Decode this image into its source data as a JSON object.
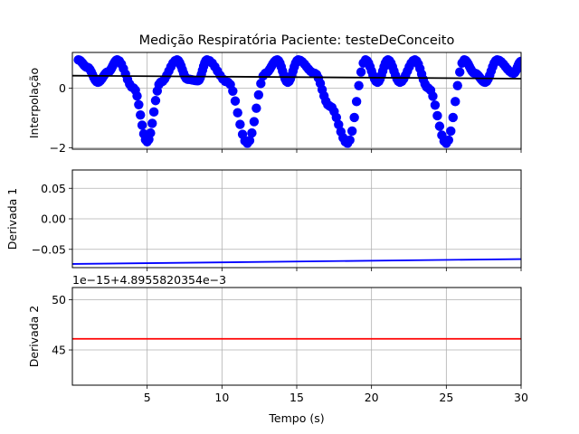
{
  "figure": {
    "title": "Medição Respiratória Paciente: testeDeConceito",
    "xlabel": "Tempo (s)",
    "x_ticks": [
      "5",
      "10",
      "15",
      "20",
      "25",
      "30"
    ]
  },
  "colors": {
    "interp_markers": "#0000ff",
    "interp_line": "#000000",
    "deriv1_line": "#0000ff",
    "deriv2_line": "#ff0000",
    "grid": "#b0b0b0"
  },
  "chart_data": [
    {
      "type": "line",
      "panel": "top",
      "ylabel": "Interpolação",
      "xlim": [
        0,
        30
      ],
      "ylim": [
        -2.05,
        1.2
      ],
      "y_tick_labels": [
        "0",
        "−2"
      ],
      "y_tick_values": [
        0,
        -2
      ],
      "grid": true,
      "series": [
        {
          "style": "markers",
          "color": "#0000ff",
          "x": [
            0.4,
            1.0,
            1.7,
            2.4,
            3.0,
            4.1,
            5.0,
            5.9,
            7.0,
            7.7,
            8.4,
            9.0,
            10.4,
            11.7,
            12.9,
            13.7,
            14.4,
            15.1,
            16.2,
            17.2,
            18.4,
            19.6,
            20.4,
            21.1,
            21.9,
            22.9,
            23.8,
            25.0,
            26.2,
            26.9,
            27.6,
            28.4,
            29.5,
            30.0
          ],
          "y": [
            0.95,
            0.7,
            0.2,
            0.55,
            0.95,
            0.0,
            -1.8,
            0.2,
            0.95,
            0.3,
            0.25,
            0.95,
            0.2,
            -1.85,
            0.5,
            0.95,
            0.2,
            0.95,
            0.5,
            -0.6,
            -1.85,
            0.95,
            0.2,
            0.95,
            0.2,
            0.95,
            0.0,
            -1.85,
            0.95,
            0.5,
            0.2,
            0.95,
            0.5,
            0.9
          ]
        },
        {
          "style": "line",
          "color": "#000000",
          "x": [
            0,
            30
          ],
          "y": [
            0.42,
            0.32
          ]
        }
      ]
    },
    {
      "type": "line",
      "panel": "middle",
      "ylabel": "Derivada 1",
      "xlim": [
        0,
        30
      ],
      "ylim": [
        -0.08,
        0.08
      ],
      "y_tick_labels": [
        "0.05",
        "0.00",
        "−0.05"
      ],
      "y_tick_values": [
        0.05,
        0.0,
        -0.05
      ],
      "grid": true,
      "series": [
        {
          "style": "line",
          "color": "#0000ff",
          "x": [
            0,
            30
          ],
          "y": [
            -0.074,
            -0.066
          ]
        }
      ]
    },
    {
      "type": "line",
      "panel": "bottom",
      "ylabel": "Derivada 2",
      "offset_text": "1e−15+4.8955820354e−3",
      "xlim": [
        0,
        30
      ],
      "ylim": [
        41.5,
        51.2
      ],
      "y_tick_labels": [
        "50",
        "45"
      ],
      "y_tick_values": [
        50,
        45
      ],
      "grid": true,
      "series": [
        {
          "style": "line",
          "color": "#ff0000",
          "x": [
            0,
            30
          ],
          "y": [
            46.1,
            46.1
          ]
        }
      ]
    }
  ]
}
